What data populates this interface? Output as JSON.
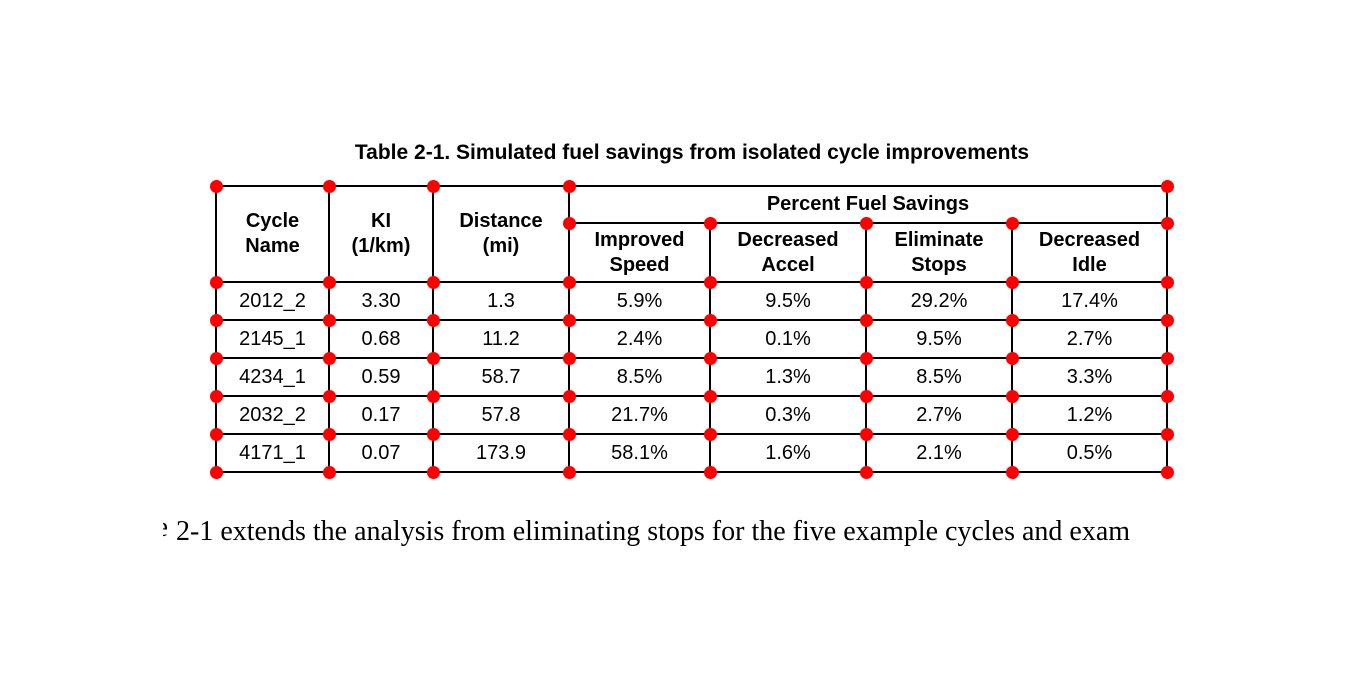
{
  "page": {
    "background": "#ffffff",
    "marker_color": "#ff0000"
  },
  "title": "Table 2-1. Simulated fuel savings from isolated cycle improvements",
  "table": {
    "group_header": "Percent Fuel Savings",
    "column_headers": {
      "cycle_name": "Cycle\nName",
      "ki": "KI\n(1/km)",
      "distance": "Distance\n(mi)",
      "improved_speed": "Improved\nSpeed",
      "decreased_accel": "Decreased\nAccel",
      "eliminate_stops": "Eliminate\nStops",
      "decreased_idle": "Decreased\nIdle"
    },
    "rows": [
      [
        "2012_2",
        "3.30",
        "1.3",
        "5.9%",
        "9.5%",
        "29.2%",
        "17.4%"
      ],
      [
        "2145_1",
        "0.68",
        "11.2",
        "2.4%",
        "0.1%",
        "9.5%",
        "2.7%"
      ],
      [
        "4234_1",
        "0.59",
        "58.7",
        "8.5%",
        "1.3%",
        "8.5%",
        "3.3%"
      ],
      [
        "2032_2",
        "0.17",
        "57.8",
        "21.7%",
        "0.3%",
        "2.7%",
        "1.2%"
      ],
      [
        "4171_1",
        "0.07",
        "173.9",
        "58.1%",
        "1.6%",
        "2.1%",
        "0.5%"
      ]
    ]
  },
  "body_text": {
    "fragment": "e",
    "text": "2-1 extends the analysis from eliminating stops for the five example cycles and exam"
  }
}
